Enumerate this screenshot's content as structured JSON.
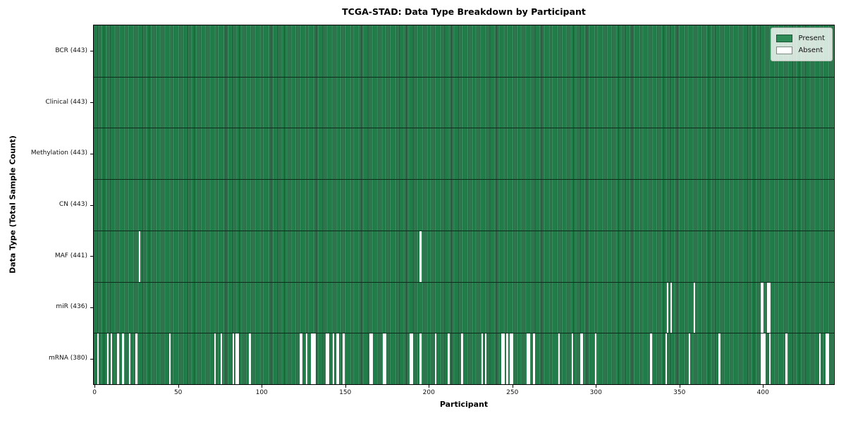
{
  "chart_data": {
    "type": "heatmap",
    "title": "TCGA-STAD: Data Type Breakdown by Participant",
    "xlabel": "Participant",
    "ylabel": "Data Type (Total Sample Count)",
    "n_participants": 443,
    "x_ticks": [
      0,
      50,
      100,
      150,
      200,
      250,
      300,
      350,
      400
    ],
    "present_color": "#2e8b57",
    "absent_color": "#ffffff",
    "bar_edge_color": "#16402a",
    "row_divider_color": "#0e2c1c",
    "grid": false,
    "legend": {
      "position": "upper right",
      "entries": [
        {
          "label": "Present",
          "color": "#2e8b57"
        },
        {
          "label": "Absent",
          "color": "#ffffff"
        }
      ]
    },
    "rows": [
      {
        "label": "BCR (443)",
        "data_type": "BCR",
        "total_count": 443,
        "absent_participants": []
      },
      {
        "label": "Clinical (443)",
        "data_type": "Clinical",
        "total_count": 443,
        "absent_participants": []
      },
      {
        "label": "Methylation (443)",
        "data_type": "Methylation",
        "total_count": 443,
        "absent_participants": []
      },
      {
        "label": "CN (443)",
        "data_type": "CN",
        "total_count": 443,
        "absent_participants": []
      },
      {
        "label": "MAF (441)",
        "data_type": "MAF",
        "total_count": 441,
        "absent_participants": [
          27,
          195
        ]
      },
      {
        "label": "miR (436)",
        "data_type": "miR",
        "total_count": 436,
        "absent_participants": [
          343,
          345,
          359,
          399,
          400,
          403,
          404
        ]
      },
      {
        "label": "mRNA (380)",
        "data_type": "mRNA",
        "total_count": 380,
        "absent_participants": [
          2,
          8,
          10,
          14,
          17,
          21,
          25,
          45,
          72,
          76,
          83,
          85,
          86,
          93,
          123,
          124,
          127,
          130,
          131,
          132,
          139,
          140,
          143,
          145,
          146,
          149,
          165,
          166,
          173,
          174,
          189,
          190,
          195,
          204,
          212,
          220,
          232,
          234,
          244,
          245,
          247,
          249,
          250,
          259,
          260,
          263,
          278,
          286,
          291,
          292,
          300,
          333,
          342,
          356,
          374,
          399,
          400,
          401,
          404,
          414,
          434,
          438,
          439
        ]
      }
    ]
  }
}
